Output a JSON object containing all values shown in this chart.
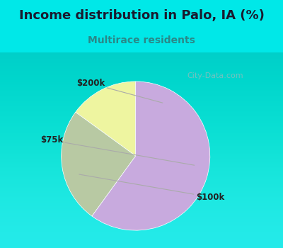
{
  "title": "Income distribution in Palo, IA (%)",
  "subtitle": "Multirace residents",
  "slices": [
    {
      "label": "$200k",
      "value": 15,
      "color": "#eef5a0"
    },
    {
      "label": "$75k",
      "value": 25,
      "color": "#b8c9a3"
    },
    {
      "label": "$100k",
      "value": 60,
      "color": "#c8aade"
    }
  ],
  "startangle": 90,
  "outer_bg": "#00e8e8",
  "chart_bg_top": "#e0f0ec",
  "chart_bg_bottom": "#d8eee8",
  "title_color": "#1a1a2e",
  "subtitle_color": "#2a8888",
  "label_color": "#222222",
  "watermark": "City-Data.com",
  "watermark_color": "#99bbbb",
  "title_fontsize": 13,
  "subtitle_fontsize": 10,
  "label_fontsize": 8.5
}
